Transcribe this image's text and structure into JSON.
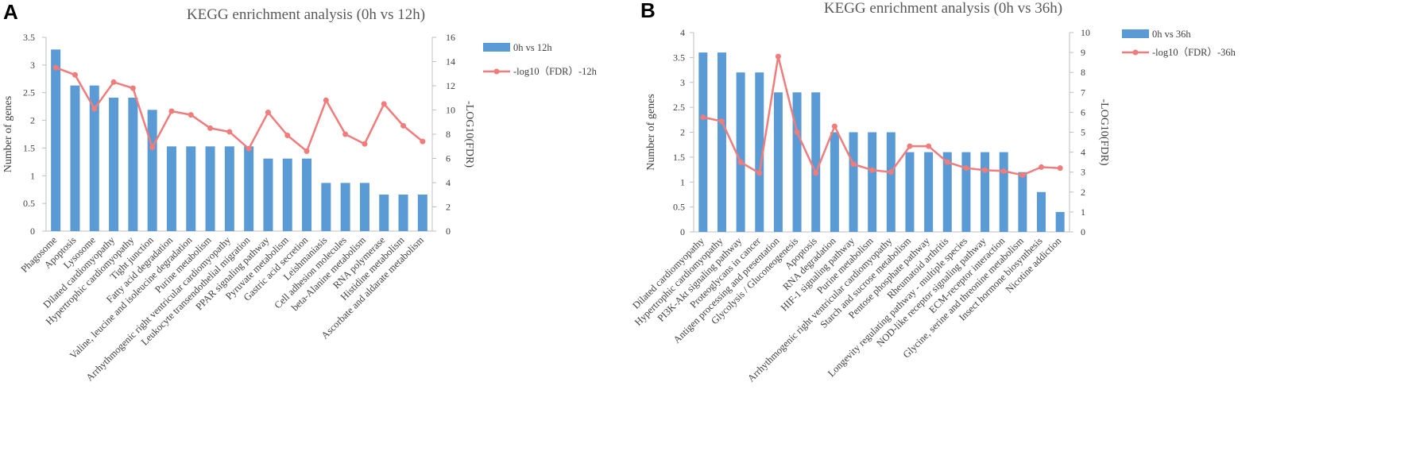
{
  "colors": {
    "bar": "#5b9bd5",
    "line": "#f07c7c",
    "axis": "#bfbfbf",
    "text": "#404040",
    "panel_label": "#000000"
  },
  "chart_data": [
    {
      "panel_label": "A",
      "type": "bar",
      "title": "KEGG enrichment analysis (0h vs 12h)",
      "ylabel": "Number of genes",
      "y2label": "-LOG10(FDR)",
      "ylim": [
        0,
        3.5
      ],
      "y_ticks": [
        "0",
        "0.5",
        "1",
        "1.5",
        "2",
        "2.5",
        "3",
        "3.5"
      ],
      "y2lim": [
        0,
        16
      ],
      "y2_ticks": [
        "0",
        "2",
        "4",
        "6",
        "8",
        "10",
        "12",
        "14",
        "16"
      ],
      "legend_position": "top-right",
      "categories": [
        "Phagosome",
        "Apoptosis",
        "Lysosome",
        "Dilated cardiomyopathy",
        "Hypertrophic cardiomyopathy",
        "Tight junction",
        "Fatty acid degradation",
        "Valine, leucine and isoleucine degradation",
        "Purine metabolism",
        "Arrhythmogenic right ventricular cardiomyopathy",
        "Leukocyte transendothelial migration",
        "PPAR signaling pathway",
        "Pyruvate metabolism",
        "Gastric acid secretion",
        "Leishmaniasis",
        "Cell adhesion molecules",
        "beta-Alanine metabolism",
        "RNA polymerase",
        "Histidine metabolism",
        "Ascorbate and aldarate metabolism"
      ],
      "series": [
        {
          "name": "0h vs 12h",
          "type": "bar",
          "axis": "left",
          "values": [
            3.28,
            2.63,
            2.63,
            2.41,
            2.41,
            2.19,
            1.53,
            1.53,
            1.53,
            1.53,
            1.53,
            1.31,
            1.31,
            1.31,
            0.87,
            0.87,
            0.87,
            0.66,
            0.66,
            0.66
          ]
        },
        {
          "name": "-log10（FDR）-12h",
          "type": "line",
          "axis": "right",
          "values": [
            13.5,
            12.9,
            10.1,
            12.3,
            11.8,
            6.9,
            9.9,
            9.6,
            8.5,
            8.2,
            6.8,
            9.8,
            7.9,
            6.6,
            10.8,
            8.0,
            7.2,
            10.5,
            8.7,
            7.4
          ]
        }
      ]
    },
    {
      "panel_label": "B",
      "type": "bar",
      "title": "KEGG enrichment analysis (0h vs 36h)",
      "ylabel": "Number of genes",
      "y2label": "-LOG10(FDR)",
      "ylim": [
        0,
        4
      ],
      "y_ticks": [
        "0",
        "0.5",
        "1",
        "1.5",
        "2",
        "2.5",
        "3",
        "3.5",
        "4"
      ],
      "y2lim": [
        0,
        10
      ],
      "y2_ticks": [
        "0",
        "1",
        "2",
        "3",
        "4",
        "5",
        "6",
        "7",
        "8",
        "9",
        "10"
      ],
      "legend_position": "top-right",
      "categories": [
        "Dilated cardiomyopathy",
        "Hypertrophic cardiomyopathy",
        "PI3K-Akt signaling pathway",
        "Proteoglycans in cancer",
        "Antigen processing and presentation",
        "Glycolysis / Gluconeogenesis",
        "Apoptosis",
        "RNA degradation",
        "HIF-1 signaling pathway",
        "Purine metabolism",
        "Arrhythmogenic right ventricular cardiomyopathy",
        "Starch and sucrose metabolism",
        "Pentose phosphate pathway",
        "Rheumatoid arthritis",
        "Longevity regulating pathway - multiple species",
        "NOD-like receptor signaling pathway",
        "ECM-receptor interaction",
        "Glycine, serine and threonine metabolism",
        "Insect hormone biosynthesis",
        "Nicotine addiction"
      ],
      "series": [
        {
          "name": "0h vs 36h",
          "type": "bar",
          "axis": "left",
          "values": [
            3.6,
            3.6,
            3.2,
            3.2,
            2.8,
            2.8,
            2.8,
            2.0,
            2.0,
            2.0,
            2.0,
            1.6,
            1.6,
            1.6,
            1.6,
            1.6,
            1.6,
            1.2,
            0.8,
            0.4
          ]
        },
        {
          "name": "-log10（FDR）-36h",
          "type": "line",
          "axis": "right",
          "values": [
            5.75,
            5.55,
            3.5,
            2.95,
            8.8,
            5.0,
            2.95,
            5.3,
            3.4,
            3.1,
            3.0,
            4.3,
            4.3,
            3.5,
            3.2,
            3.1,
            3.05,
            2.85,
            3.25,
            3.2
          ]
        }
      ]
    }
  ]
}
